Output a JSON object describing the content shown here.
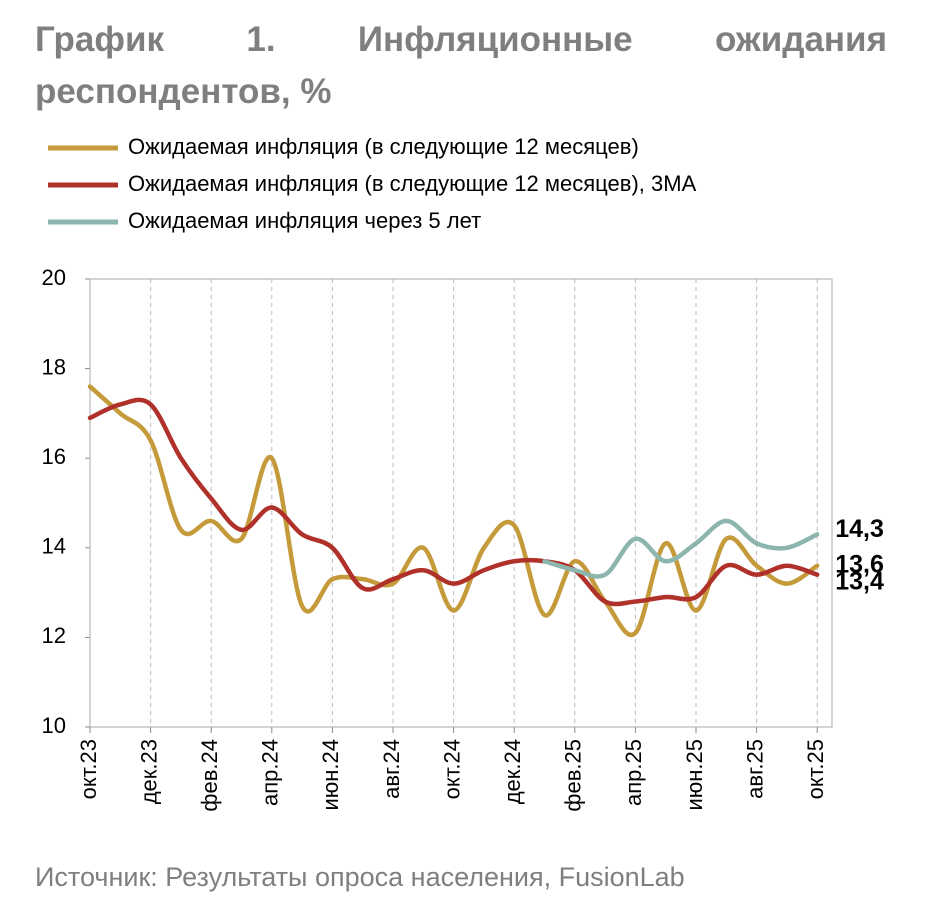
{
  "chart_data": {
    "type": "line",
    "title": "График 1. Инфляционные ожидания респондентов, %",
    "source": "Источник: Результаты опроса населения, FusionLab",
    "categories": [
      "окт.23",
      null,
      "дек.23",
      null,
      "фев.24",
      null,
      "апр.24",
      null,
      "июн.24",
      null,
      "авг.24",
      null,
      "окт.24",
      null,
      "дек.24",
      null,
      "фев.25",
      null,
      "апр.25",
      null,
      "июн.25",
      null,
      "авг.25",
      null,
      "окт.25"
    ],
    "series": [
      {
        "name": "Ожидаемая инфляция (в следующие 12 месяцев)",
        "color": "#c49a3a",
        "values": [
          17.6,
          17.0,
          16.4,
          14.4,
          14.6,
          14.2,
          16.0,
          12.7,
          13.3,
          13.3,
          13.2,
          14.0,
          12.6,
          14.0,
          14.5,
          12.5,
          13.7,
          12.8,
          12.1,
          14.1,
          12.6,
          14.2,
          13.6,
          13.2,
          13.6
        ],
        "value_labels": [
          null,
          null,
          null,
          null,
          null,
          null,
          null,
          null,
          null,
          null,
          null,
          null,
          null,
          null,
          null,
          null,
          null,
          null,
          null,
          null,
          null,
          null,
          null,
          null,
          "13,6"
        ]
      },
      {
        "name": "Ожидаемая инфляция (в следующие 12 месяцев), 3МА",
        "color": "#b0302a",
        "values": [
          16.9,
          17.2,
          17.2,
          16.0,
          15.1,
          14.4,
          14.9,
          14.3,
          14.0,
          13.1,
          13.3,
          13.5,
          13.2,
          13.5,
          13.7,
          13.7,
          13.5,
          12.8,
          12.8,
          12.9,
          12.9,
          13.6,
          13.4,
          13.6,
          13.4
        ],
        "value_labels": [
          null,
          null,
          null,
          null,
          null,
          null,
          null,
          null,
          null,
          null,
          null,
          null,
          null,
          null,
          null,
          null,
          null,
          null,
          null,
          null,
          null,
          null,
          null,
          null,
          "13,4"
        ]
      },
      {
        "name": "Ожидаемая инфляция через 5 лет",
        "color": "#8cb5ae",
        "values": [
          null,
          null,
          null,
          null,
          null,
          null,
          null,
          null,
          null,
          null,
          null,
          null,
          null,
          null,
          null,
          13.7,
          13.5,
          13.4,
          14.2,
          13.7,
          14.1,
          14.6,
          14.1,
          14.0,
          14.3
        ],
        "value_labels": [
          null,
          null,
          null,
          null,
          null,
          null,
          null,
          null,
          null,
          null,
          null,
          null,
          null,
          null,
          null,
          null,
          null,
          null,
          null,
          null,
          null,
          null,
          null,
          null,
          "14,3"
        ]
      }
    ],
    "value_label_colors": [
      "#c49a3a",
      "#b0302a",
      "#4f7a72"
    ],
    "ylim": [
      10,
      20
    ],
    "yticks": [
      10,
      12,
      14,
      16,
      18,
      20
    ],
    "grid": true
  }
}
